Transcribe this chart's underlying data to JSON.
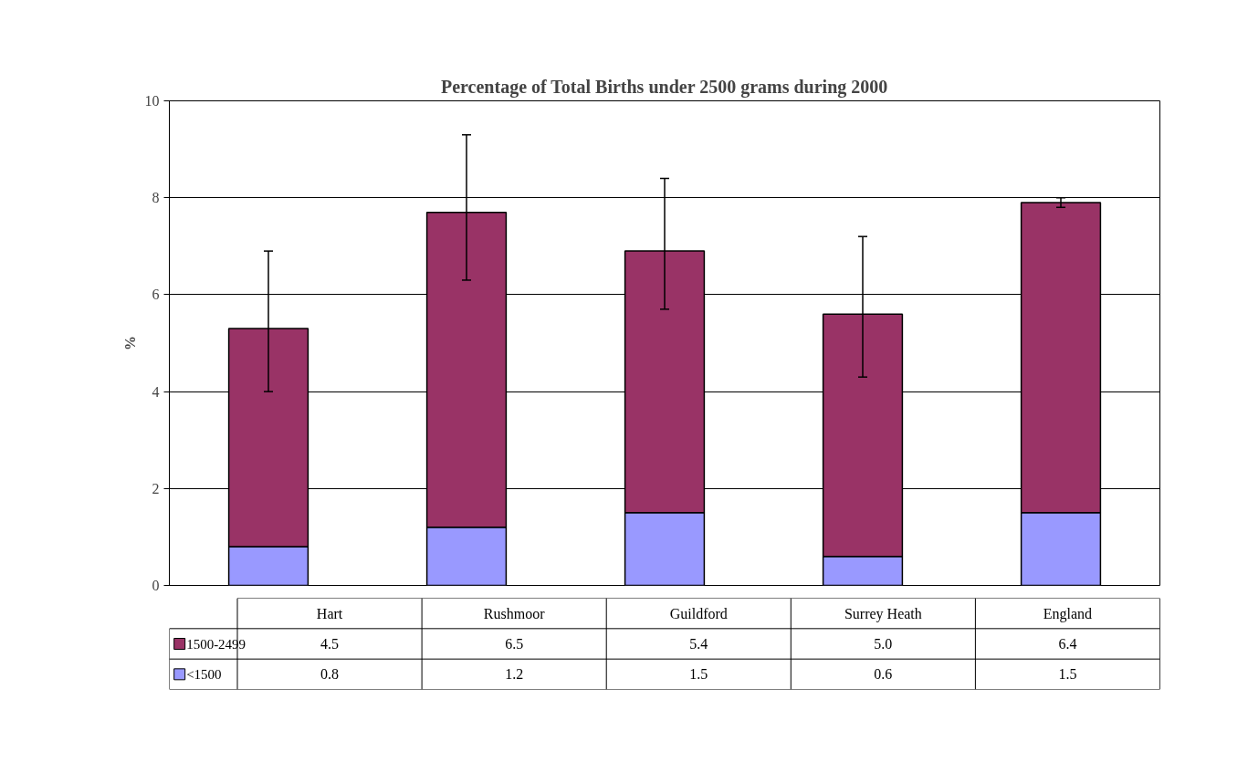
{
  "chart_data": {
    "type": "bar",
    "title": "Percentage of Total Births under 2500 grams during 2000",
    "ylabel": "%",
    "categories": [
      "Hart",
      "Rushmoor",
      "Guildford",
      "Surrey Heath",
      "England"
    ],
    "stacked": true,
    "series": [
      {
        "name": "<1500",
        "color": "#9999ff",
        "values": [
          0.8,
          1.2,
          1.5,
          0.6,
          1.5
        ],
        "value_labels": [
          "0.8",
          "1.2",
          "1.5",
          "0.6",
          "1.5"
        ]
      },
      {
        "name": "1500-2499",
        "color": "#993366",
        "values": [
          4.5,
          6.5,
          5.4,
          5.0,
          6.4
        ],
        "value_labels": [
          "4.5",
          "6.5",
          "5.4",
          "5.0",
          "6.4"
        ],
        "errors": [
          [
            4.0,
            6.9
          ],
          [
            6.3,
            9.3
          ],
          [
            5.7,
            8.4
          ],
          [
            4.3,
            7.2
          ],
          [
            7.8,
            8.0
          ]
        ]
      }
    ],
    "ylim": [
      0,
      10
    ],
    "yticks": [
      0,
      2,
      4,
      6,
      8,
      10
    ],
    "grid": "y",
    "legend": "bottom"
  }
}
